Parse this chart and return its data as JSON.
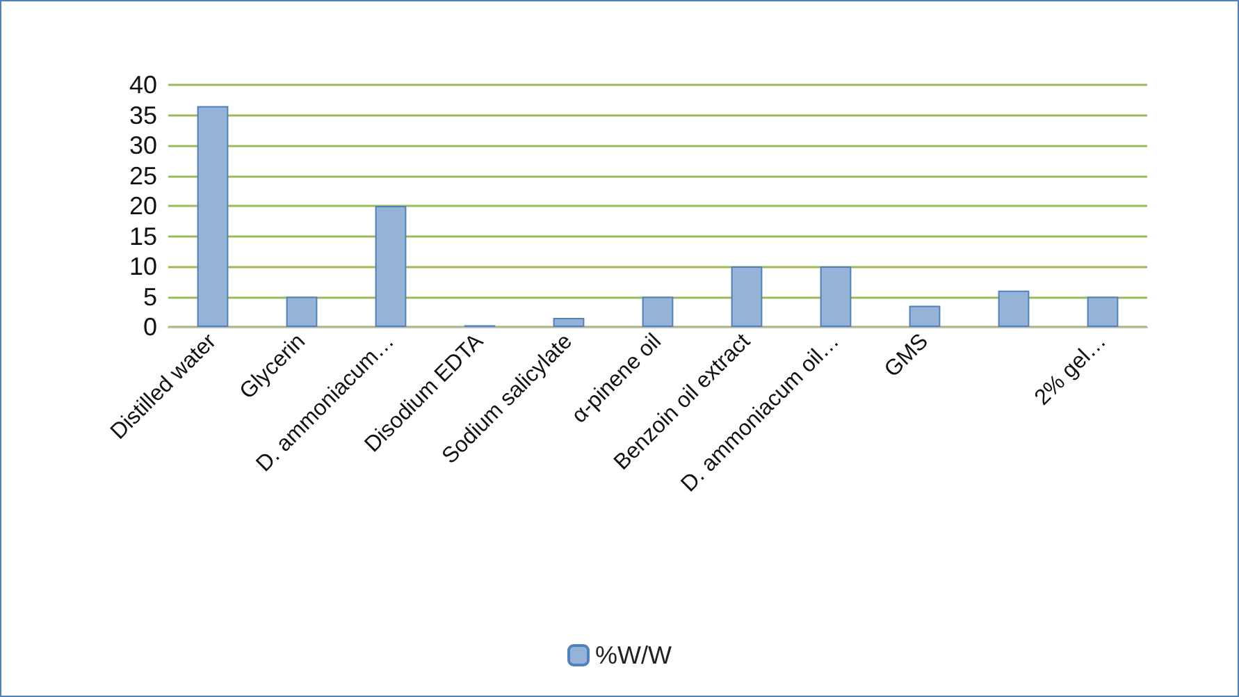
{
  "chart_data": {
    "type": "bar",
    "categories": [
      "Distilled water",
      "Glycerin",
      "D. ammoniacum…",
      "Disodium EDTA",
      "Sodium salicylate",
      "α-pinene oil",
      "Benzoin oil extract",
      "D. ammoniacum oil…",
      "GMS",
      null,
      "2% gel…"
    ],
    "series": [
      {
        "name": "%W/W",
        "color": "#95b3d7",
        "values": [
          36.5,
          5,
          20,
          0.3,
          1.5,
          5,
          10,
          10,
          3.5,
          6,
          5
        ]
      }
    ],
    "ylim": [
      0,
      40
    ],
    "yticks": [
      0,
      5,
      10,
      15,
      20,
      25,
      30,
      35,
      40
    ],
    "grid": "y",
    "legend": "bottom"
  }
}
